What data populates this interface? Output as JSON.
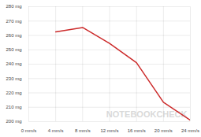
{
  "chart_data": {
    "type": "line",
    "x": [
      4,
      8,
      12,
      16,
      20,
      24
    ],
    "series": [
      {
        "color": "#cc2a2a",
        "values": [
          262.5,
          265.5,
          254.5,
          241,
          213.5,
          201
        ]
      }
    ],
    "xlim": [
      0,
      24
    ],
    "xticks": [
      {
        "value": 0,
        "label": "0 mm/s"
      },
      {
        "value": 4,
        "label": "4 mm/s"
      },
      {
        "value": 8,
        "label": "8 mm/s"
      },
      {
        "value": 12,
        "label": "12 mm/s"
      },
      {
        "value": 16,
        "label": "16 mm/s"
      },
      {
        "value": 20,
        "label": "20 mm/s"
      },
      {
        "value": 24,
        "label": "24 mm/s"
      }
    ],
    "ylim": [
      200,
      280
    ],
    "yticks": [
      {
        "value": 200,
        "label": "200 mg"
      },
      {
        "value": 210,
        "label": "210 mg"
      },
      {
        "value": 220,
        "label": "220 mg"
      },
      {
        "value": 230,
        "label": "230 mg"
      },
      {
        "value": 240,
        "label": "240 mg"
      },
      {
        "value": 250,
        "label": "250 mg"
      },
      {
        "value": 260,
        "label": "260 mg"
      },
      {
        "value": 270,
        "label": "270 mg"
      },
      {
        "value": 280,
        "label": "280 mg"
      }
    ],
    "grid": true,
    "annotations": [
      "NOTEBOOKCHECK"
    ]
  }
}
